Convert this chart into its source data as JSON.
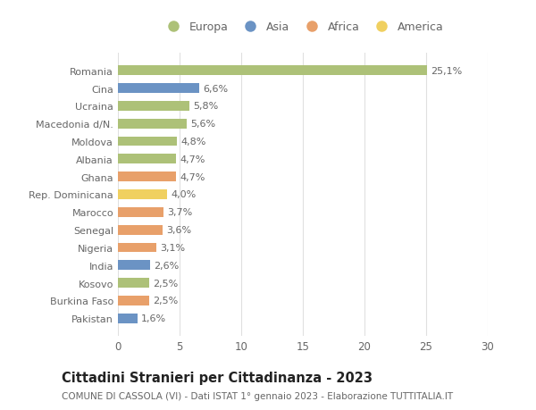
{
  "countries": [
    "Romania",
    "Cina",
    "Ucraina",
    "Macedonia d/N.",
    "Moldova",
    "Albania",
    "Ghana",
    "Rep. Dominicana",
    "Marocco",
    "Senegal",
    "Nigeria",
    "India",
    "Kosovo",
    "Burkina Faso",
    "Pakistan"
  ],
  "values": [
    25.1,
    6.6,
    5.8,
    5.6,
    4.8,
    4.7,
    4.7,
    4.0,
    3.7,
    3.6,
    3.1,
    2.6,
    2.5,
    2.5,
    1.6
  ],
  "labels": [
    "25,1%",
    "6,6%",
    "5,8%",
    "5,6%",
    "4,8%",
    "4,7%",
    "4,7%",
    "4,0%",
    "3,7%",
    "3,6%",
    "3,1%",
    "2,6%",
    "2,5%",
    "2,5%",
    "1,6%"
  ],
  "continents": [
    "Europa",
    "Asia",
    "Europa",
    "Europa",
    "Europa",
    "Europa",
    "Africa",
    "America",
    "Africa",
    "Africa",
    "Africa",
    "Asia",
    "Europa",
    "Africa",
    "Asia"
  ],
  "colors": {
    "Europa": "#adc178",
    "Asia": "#6b93c4",
    "Africa": "#e8a06a",
    "America": "#f0d060"
  },
  "title": "Cittadini Stranieri per Cittadinanza - 2023",
  "subtitle": "COMUNE DI CASSOLA (VI) - Dati ISTAT 1° gennaio 2023 - Elaborazione TUTTITALIA.IT",
  "xlim": [
    0,
    30
  ],
  "xticks": [
    0,
    5,
    10,
    15,
    20,
    25,
    30
  ],
  "background_color": "#ffffff",
  "grid_color": "#e0e0e0",
  "bar_height": 0.55,
  "label_fontsize": 8.0,
  "ytick_fontsize": 8.0,
  "xtick_fontsize": 8.5,
  "title_fontsize": 10.5,
  "subtitle_fontsize": 7.5,
  "text_color": "#666666",
  "title_color": "#222222"
}
